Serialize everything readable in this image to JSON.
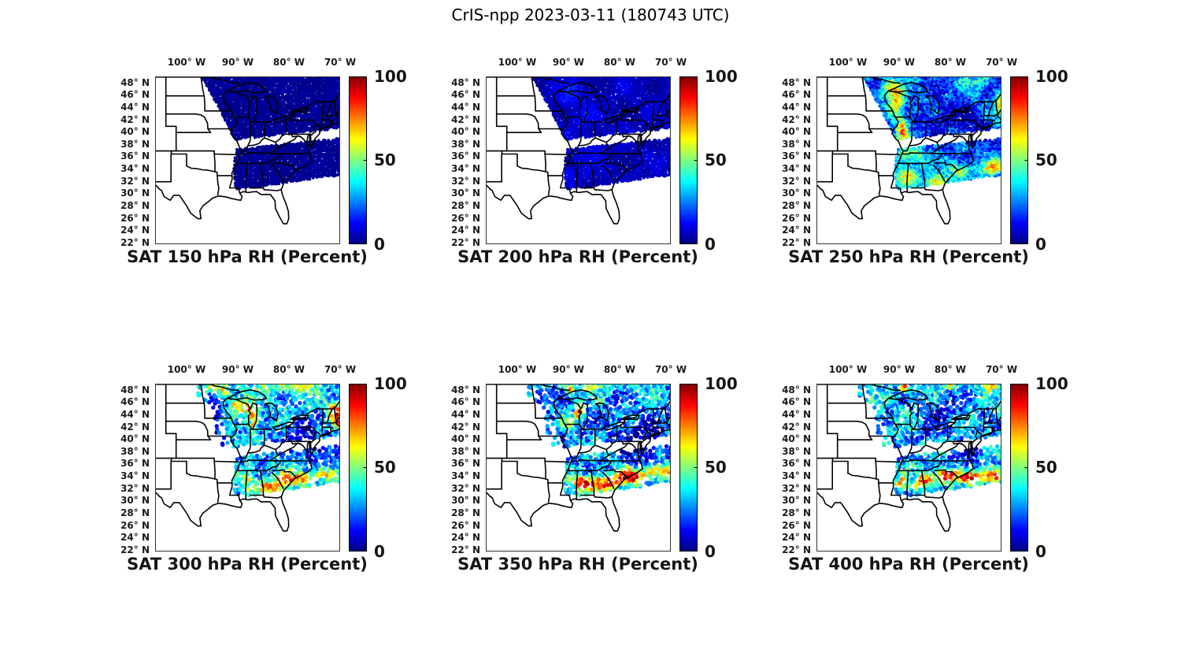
{
  "title": "CrIS-npp 2023-03-11 (180743 UTC)",
  "chart_data": {
    "type": "map-scatter",
    "instrument": "CrIS-npp",
    "date": "2023-03-11",
    "time_utc": "180743",
    "variable": "RH (Percent)",
    "levels_hPa": [
      150,
      200,
      250,
      300,
      350,
      400
    ],
    "colorbar": {
      "min": 0,
      "max": 100,
      "ticks": [
        100,
        50,
        0
      ],
      "tick_labels": [
        "100",
        "50",
        "0"
      ],
      "colormap": "jet"
    },
    "axes": {
      "lon_tick_labels": [
        "100° W",
        "90° W",
        "80° W",
        "70° W"
      ],
      "lon_tick_values": [
        -100,
        -90,
        -80,
        -70
      ],
      "lat_tick_labels": [
        "48° N",
        "46° N",
        "44° N",
        "42° N",
        "40° N",
        "38° N",
        "36° N",
        "34° N",
        "32° N",
        "30° N",
        "28° N",
        "26° N",
        "24° N",
        "22° N"
      ],
      "lat_tick_values": [
        48,
        46,
        44,
        42,
        40,
        38,
        36,
        34,
        32,
        30,
        28,
        26,
        24,
        22
      ],
      "lon_range": [
        -106.15,
        -70.0
      ],
      "lat_range": [
        21.86,
        49.1
      ]
    },
    "swath_polygon": [
      [
        -97.3,
        49.35
      ],
      [
        -69.5,
        49.35
      ],
      [
        -69.5,
        33.1
      ],
      [
        -76.0,
        32.4
      ],
      [
        -81.0,
        31.8
      ],
      [
        -86.0,
        31.1
      ],
      [
        -90.5,
        30.8
      ],
      [
        -90.9,
        34.5
      ],
      [
        -89.9,
        38.15
      ]
    ],
    "gap_band": {
      "lon_start": -90.9,
      "lon_end": -69.5,
      "lat_start": 38.0,
      "lat_rise": 1.9,
      "half_width": 0.8
    },
    "edge_strip": {
      "width": 2.4,
      "keep": 0.3
    },
    "panels": [
      {
        "id": "sat-150-hpa",
        "title": "SAT 150 hPa RH (Percent)",
        "level_hPa": 150,
        "summary": "Uniform near-0% RH (solid dark blue) across the whole swath",
        "field": {
          "base": 2,
          "low": 1,
          "speckle": 1,
          "seed": 1,
          "blobs": []
        }
      },
      {
        "id": "sat-200-hpa",
        "title": "SAT 200 hPa RH (Percent)",
        "level_hPa": 200,
        "summary": "Mostly 0-15% RH, faint brighter-blue patches over the upper Midwest and Gulf states",
        "field": {
          "base": 6,
          "low": 4,
          "speckle": 3,
          "seed": 2,
          "blobs": [
            [
              -89.5,
              46,
              2.5,
              2,
              9
            ],
            [
              -87,
              42.5,
              2,
              1.5,
              7
            ],
            [
              -90,
              33.5,
              1.5,
              1,
              8
            ],
            [
              -85.5,
              38,
              3,
              2,
              5
            ]
          ]
        }
      },
      {
        "id": "sat-250-hpa",
        "title": "SAT 250 hPa RH (Percent)",
        "level_hPa": 250,
        "summary": "40-80% bands over Wisconsin/Illinois and the Gulf states, 10-30% over the Northeast, orange along the Maine coast",
        "field": {
          "base": 22,
          "low": 10,
          "speckle": 13,
          "seed": 3,
          "blobs": [
            [
              -90.6,
              44.8,
              1.4,
              2.2,
              46
            ],
            [
              -89.3,
              40.3,
              1.1,
              2.6,
              44
            ],
            [
              -91.8,
              47.3,
              1.8,
              1.5,
              38
            ],
            [
              -87.6,
              36.3,
              2.6,
              1.6,
              30
            ],
            [
              -88.6,
              33.0,
              2.2,
              1.4,
              46
            ],
            [
              -82.5,
              31.9,
              2.6,
              1.1,
              44
            ],
            [
              -78.0,
              33.9,
              2.2,
              1.2,
              40
            ],
            [
              -71.8,
              34.4,
              2.4,
              1.2,
              42
            ],
            [
              -70.3,
              44.5,
              0.9,
              2.0,
              40
            ],
            [
              -74.5,
              48.3,
              3.0,
              1.2,
              16
            ],
            [
              -80.0,
              43.0,
              3.5,
              2.8,
              -16
            ],
            [
              -75.0,
              40.5,
              3.0,
              2.5,
              -13
            ],
            [
              -84.0,
              42.0,
              2.2,
              1.8,
              -12
            ]
          ]
        }
      },
      {
        "id": "sat-300-hpa",
        "title": "SAT 300 hPa RH (Percent)",
        "level_hPa": 300,
        "summary": "50-70% along the northern edge and Lake Michigan, dry mid-Atlantic, 70-90% band along the southeast coast",
        "field": {
          "base": 30,
          "low": 10,
          "speckle": 14,
          "seed": 4,
          "blobs": [
            [
              -92.8,
              48.0,
              1.4,
              1.1,
              42
            ],
            [
              -90.3,
              46.0,
              1.2,
              1.2,
              38
            ],
            [
              -88.2,
              44.9,
              1.3,
              1.2,
              40
            ],
            [
              -86.8,
              43.2,
              0.9,
              1.9,
              46
            ],
            [
              -80.0,
              48.7,
              6.0,
              1.0,
              26
            ],
            [
              -94.8,
              48.8,
              1.2,
              0.8,
              40
            ],
            [
              -70.6,
              43.8,
              1.2,
              1.6,
              50
            ],
            [
              -71.6,
              45.2,
              1.5,
              1.0,
              30
            ],
            [
              -94.3,
              43.5,
              1.3,
              3.5,
              -26
            ],
            [
              -77.8,
              41.3,
              2.8,
              2.2,
              -24
            ],
            [
              -74.5,
              38.3,
              3.0,
              2.0,
              -20
            ],
            [
              -85.0,
              38.3,
              2.5,
              2.0,
              -10
            ],
            [
              -83.5,
              32.4,
              3.0,
              1.1,
              52
            ],
            [
              -78.5,
              33.7,
              3.0,
              1.1,
              52
            ],
            [
              -73.5,
              34.5,
              2.0,
              1.0,
              42
            ],
            [
              -88.3,
              33.8,
              1.4,
              1.5,
              38
            ]
          ]
        }
      },
      {
        "id": "sat-350-hpa",
        "title": "SAT 350 hPa RH (Percent)",
        "level_hPa": 350,
        "summary": "Red >90% spots over Wisconsin and Lake Michigan, very moist band along the Gulf/southeast coast, dry Northeast",
        "field": {
          "base": 27,
          "low": 12,
          "speckle": 14,
          "seed": 5,
          "blobs": [
            [
              -89.6,
              48.2,
              0.9,
              0.8,
              62
            ],
            [
              -87.9,
              44.6,
              0.8,
              1.3,
              58
            ],
            [
              -89.8,
              43.0,
              0.8,
              0.8,
              30
            ],
            [
              -95.6,
              46.5,
              1.2,
              2.6,
              -24
            ],
            [
              -74.8,
              39.3,
              3.6,
              3.0,
              -26
            ],
            [
              -79.5,
              41.2,
              3.0,
              2.5,
              -16
            ],
            [
              -84.0,
              32.9,
              3.6,
              1.2,
              66
            ],
            [
              -78.0,
              34.1,
              3.0,
              1.2,
              66
            ],
            [
              -72.3,
              34.9,
              2.6,
              1.2,
              56
            ],
            [
              -87.6,
              32.9,
              1.6,
              1.2,
              42
            ],
            [
              -78.0,
              48.8,
              4.0,
              1.0,
              16
            ],
            [
              -85.0,
              48.8,
              2.0,
              0.9,
              30
            ]
          ]
        }
      },
      {
        "id": "sat-400-hpa",
        "title": "SAT 400 hPa RH (Percent)",
        "level_hPa": 400,
        "summary": "Mixed 30-60% north with a >95% spot near Lake Superior, >90% band off the Carolinas, dry mid-Atlantic",
        "field": {
          "base": 30,
          "low": 12,
          "speckle": 14,
          "seed": 6,
          "blobs": [
            [
              -88.9,
              48.5,
              0.9,
              0.7,
              66
            ],
            [
              -72.4,
              48.8,
              1.6,
              0.8,
              42
            ],
            [
              -80.2,
              48.8,
              1.6,
              0.8,
              30
            ],
            [
              -81.0,
              45.0,
              2.6,
              2.6,
              -20
            ],
            [
              -84.6,
              41.2,
              2.0,
              2.0,
              -14
            ],
            [
              -77.0,
              38.0,
              3.0,
              2.5,
              -20
            ],
            [
              -76.0,
              33.9,
              2.6,
              0.9,
              62
            ],
            [
              -71.5,
              34.3,
              1.9,
              1.2,
              62
            ],
            [
              -80.8,
              34.2,
              2.0,
              1.2,
              58
            ],
            [
              -86.0,
              33.0,
              1.1,
              1.0,
              50
            ],
            [
              -84.3,
              33.8,
              1.3,
              1.0,
              44
            ],
            [
              -89.5,
              32.8,
              1.0,
              1.0,
              35
            ]
          ]
        }
      }
    ]
  }
}
